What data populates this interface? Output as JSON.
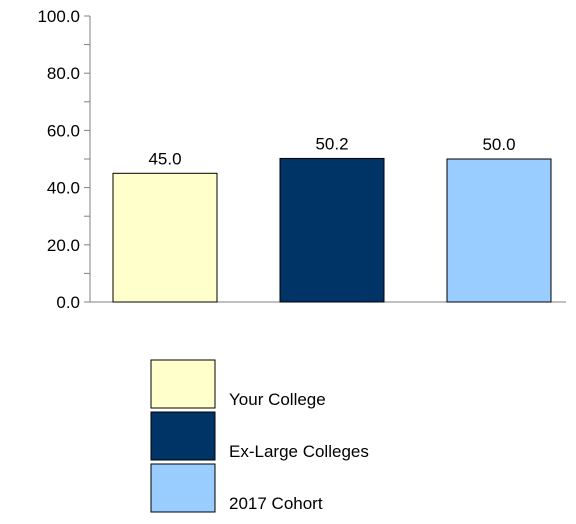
{
  "chart_data": {
    "type": "bar",
    "categories": [
      "Your College",
      "Ex-Large Colleges",
      "2017 Cohort"
    ],
    "values": [
      45.0,
      50.2,
      50.0
    ],
    "value_labels": [
      "45.0",
      "50.2",
      "50.0"
    ],
    "colors": [
      "#FFFFCC",
      "#003366",
      "#99CCFF"
    ],
    "ylim": [
      0,
      100
    ],
    "yticks": [
      0,
      20,
      40,
      60,
      80,
      100
    ],
    "ytick_labels": [
      "0.0",
      "20.0",
      "40.0",
      "60.0",
      "80.0",
      "100.0"
    ],
    "minor_ticks": true,
    "grid": false,
    "legend_position": "bottom",
    "legend": [
      "Your College",
      "Ex-Large Colleges",
      "2017 Cohort"
    ]
  }
}
